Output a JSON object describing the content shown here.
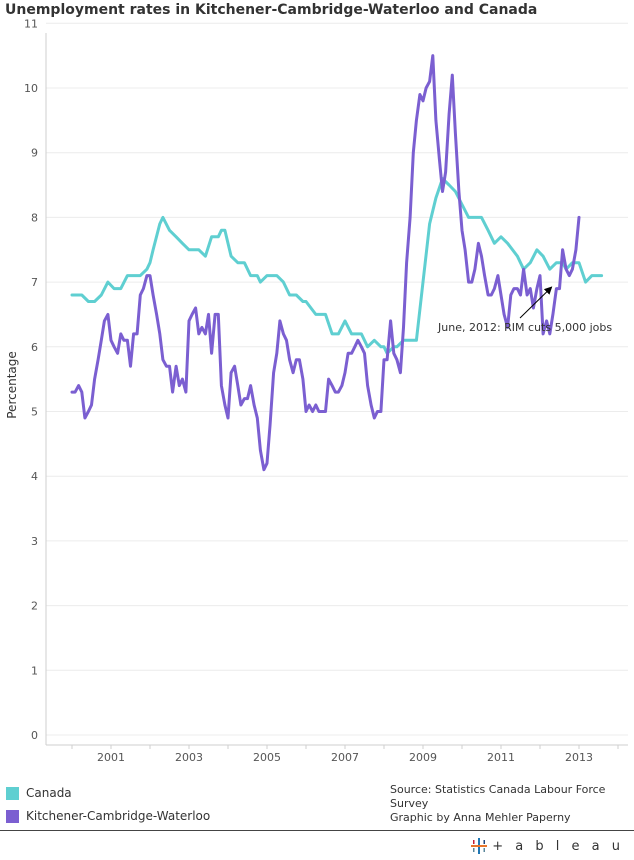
{
  "title": "Unemployment rates in Kitchener-Cambridge-Waterloo and Canada",
  "legend": [
    {
      "name": "Canada",
      "color": "#5fcfd1"
    },
    {
      "name": "Kitchener-Cambridge-Waterloo",
      "color": "#7b5fd1"
    }
  ],
  "source": {
    "line1": "Source: Statistics Canada Labour Force Survey",
    "line2": "Graphic by Anna Mehler Paperny"
  },
  "brand": {
    "name": "+ a b l e a u",
    "icon": "tableau-logo-icon"
  },
  "chart_data": {
    "type": "line",
    "title": "Unemployment rates in Kitchener-Cambridge-Waterloo and Canada",
    "ylabel": "Percentage",
    "xlabel": "",
    "ylim": [
      0,
      11
    ],
    "xlim": [
      2000.0,
      2014.0
    ],
    "y_ticks": [
      "0",
      "1",
      "2",
      "3",
      "4",
      "5",
      "6",
      "7",
      "8",
      "9",
      "10",
      "11"
    ],
    "x_ticks": [
      "2001",
      "2003",
      "2005",
      "2007",
      "2009",
      "2011",
      "2013"
    ],
    "grid": true,
    "annotation": {
      "text": "June, 2012: RIM cuts 5,000 jobs",
      "x": 2012.4,
      "y": 7.0
    },
    "series": [
      {
        "name": "Canada",
        "color": "#5fcfd1",
        "points": [
          [
            2000.0,
            6.8
          ],
          [
            2000.25,
            6.8
          ],
          [
            2000.42,
            6.7
          ],
          [
            2000.58,
            6.7
          ],
          [
            2000.75,
            6.8
          ],
          [
            2000.92,
            7.0
          ],
          [
            2001.08,
            6.9
          ],
          [
            2001.25,
            6.9
          ],
          [
            2001.42,
            7.1
          ],
          [
            2001.58,
            7.1
          ],
          [
            2001.75,
            7.1
          ],
          [
            2001.92,
            7.2
          ],
          [
            2002.0,
            7.3
          ],
          [
            2002.08,
            7.5
          ],
          [
            2002.25,
            7.9
          ],
          [
            2002.33,
            8.0
          ],
          [
            2002.5,
            7.8
          ],
          [
            2002.67,
            7.7
          ],
          [
            2002.83,
            7.6
          ],
          [
            2003.0,
            7.5
          ],
          [
            2003.25,
            7.5
          ],
          [
            2003.42,
            7.4
          ],
          [
            2003.58,
            7.7
          ],
          [
            2003.75,
            7.7
          ],
          [
            2003.83,
            7.8
          ],
          [
            2003.92,
            7.8
          ],
          [
            2004.0,
            7.6
          ],
          [
            2004.08,
            7.4
          ],
          [
            2004.25,
            7.3
          ],
          [
            2004.42,
            7.3
          ],
          [
            2004.58,
            7.1
          ],
          [
            2004.75,
            7.1
          ],
          [
            2004.83,
            7.0
          ],
          [
            2005.0,
            7.1
          ],
          [
            2005.25,
            7.1
          ],
          [
            2005.42,
            7.0
          ],
          [
            2005.58,
            6.8
          ],
          [
            2005.75,
            6.8
          ],
          [
            2005.92,
            6.7
          ],
          [
            2006.0,
            6.7
          ],
          [
            2006.25,
            6.5
          ],
          [
            2006.5,
            6.5
          ],
          [
            2006.67,
            6.2
          ],
          [
            2006.83,
            6.2
          ],
          [
            2007.0,
            6.4
          ],
          [
            2007.17,
            6.2
          ],
          [
            2007.42,
            6.2
          ],
          [
            2007.58,
            6.0
          ],
          [
            2007.75,
            6.1
          ],
          [
            2007.92,
            6.0
          ],
          [
            2008.0,
            6.0
          ],
          [
            2008.08,
            5.9
          ],
          [
            2008.25,
            6.0
          ],
          [
            2008.33,
            6.0
          ],
          [
            2008.5,
            6.1
          ],
          [
            2008.67,
            6.1
          ],
          [
            2008.83,
            6.1
          ],
          [
            2009.0,
            7.0
          ],
          [
            2009.17,
            7.9
          ],
          [
            2009.33,
            8.3
          ],
          [
            2009.5,
            8.6
          ],
          [
            2009.67,
            8.5
          ],
          [
            2009.83,
            8.4
          ],
          [
            2010.0,
            8.2
          ],
          [
            2010.17,
            8.0
          ],
          [
            2010.5,
            8.0
          ],
          [
            2010.67,
            7.8
          ],
          [
            2010.83,
            7.6
          ],
          [
            2011.0,
            7.7
          ],
          [
            2011.17,
            7.6
          ],
          [
            2011.42,
            7.4
          ],
          [
            2011.58,
            7.2
          ],
          [
            2011.75,
            7.3
          ],
          [
            2011.92,
            7.5
          ],
          [
            2012.08,
            7.4
          ],
          [
            2012.25,
            7.2
          ],
          [
            2012.42,
            7.3
          ],
          [
            2012.58,
            7.3
          ],
          [
            2012.67,
            7.2
          ],
          [
            2012.83,
            7.3
          ],
          [
            2013.0,
            7.3
          ],
          [
            2013.17,
            7.0
          ],
          [
            2013.33,
            7.1
          ],
          [
            2013.58,
            7.1
          ]
        ]
      },
      {
        "name": "Kitchener-Cambridge-Waterloo",
        "color": "#7b5fd1",
        "points": [
          [
            2000.0,
            5.3
          ],
          [
            2000.08,
            5.3
          ],
          [
            2000.17,
            5.4
          ],
          [
            2000.25,
            5.3
          ],
          [
            2000.33,
            4.9
          ],
          [
            2000.42,
            5.0
          ],
          [
            2000.5,
            5.1
          ],
          [
            2000.58,
            5.5
          ],
          [
            2000.67,
            5.8
          ],
          [
            2000.75,
            6.1
          ],
          [
            2000.83,
            6.4
          ],
          [
            2000.92,
            6.5
          ],
          [
            2001.0,
            6.1
          ],
          [
            2001.08,
            6.0
          ],
          [
            2001.17,
            5.9
          ],
          [
            2001.25,
            6.2
          ],
          [
            2001.33,
            6.1
          ],
          [
            2001.42,
            6.1
          ],
          [
            2001.5,
            5.7
          ],
          [
            2001.58,
            6.2
          ],
          [
            2001.67,
            6.2
          ],
          [
            2001.75,
            6.8
          ],
          [
            2001.83,
            6.9
          ],
          [
            2001.92,
            7.1
          ],
          [
            2002.0,
            7.1
          ],
          [
            2002.08,
            6.8
          ],
          [
            2002.17,
            6.5
          ],
          [
            2002.25,
            6.2
          ],
          [
            2002.33,
            5.8
          ],
          [
            2002.42,
            5.7
          ],
          [
            2002.5,
            5.7
          ],
          [
            2002.58,
            5.3
          ],
          [
            2002.67,
            5.7
          ],
          [
            2002.75,
            5.4
          ],
          [
            2002.83,
            5.5
          ],
          [
            2002.92,
            5.3
          ],
          [
            2003.0,
            6.4
          ],
          [
            2003.08,
            6.5
          ],
          [
            2003.17,
            6.6
          ],
          [
            2003.25,
            6.2
          ],
          [
            2003.33,
            6.3
          ],
          [
            2003.42,
            6.2
          ],
          [
            2003.5,
            6.5
          ],
          [
            2003.58,
            5.9
          ],
          [
            2003.67,
            6.5
          ],
          [
            2003.75,
            6.5
          ],
          [
            2003.83,
            5.4
          ],
          [
            2003.92,
            5.1
          ],
          [
            2004.0,
            4.9
          ],
          [
            2004.08,
            5.6
          ],
          [
            2004.17,
            5.7
          ],
          [
            2004.25,
            5.4
          ],
          [
            2004.33,
            5.1
          ],
          [
            2004.42,
            5.2
          ],
          [
            2004.5,
            5.2
          ],
          [
            2004.58,
            5.4
          ],
          [
            2004.67,
            5.1
          ],
          [
            2004.75,
            4.9
          ],
          [
            2004.83,
            4.4
          ],
          [
            2004.92,
            4.1
          ],
          [
            2005.0,
            4.2
          ],
          [
            2005.08,
            4.8
          ],
          [
            2005.17,
            5.6
          ],
          [
            2005.25,
            5.9
          ],
          [
            2005.33,
            6.4
          ],
          [
            2005.42,
            6.2
          ],
          [
            2005.5,
            6.1
          ],
          [
            2005.58,
            5.8
          ],
          [
            2005.67,
            5.6
          ],
          [
            2005.75,
            5.8
          ],
          [
            2005.83,
            5.8
          ],
          [
            2005.92,
            5.5
          ],
          [
            2006.0,
            5.0
          ],
          [
            2006.08,
            5.1
          ],
          [
            2006.17,
            5.0
          ],
          [
            2006.25,
            5.1
          ],
          [
            2006.33,
            5.0
          ],
          [
            2006.42,
            5.0
          ],
          [
            2006.5,
            5.0
          ],
          [
            2006.58,
            5.5
          ],
          [
            2006.67,
            5.4
          ],
          [
            2006.75,
            5.3
          ],
          [
            2006.83,
            5.3
          ],
          [
            2006.92,
            5.4
          ],
          [
            2007.0,
            5.6
          ],
          [
            2007.08,
            5.9
          ],
          [
            2007.17,
            5.9
          ],
          [
            2007.25,
            6.0
          ],
          [
            2007.33,
            6.1
          ],
          [
            2007.42,
            6.0
          ],
          [
            2007.5,
            5.9
          ],
          [
            2007.58,
            5.4
          ],
          [
            2007.67,
            5.1
          ],
          [
            2007.75,
            4.9
          ],
          [
            2007.83,
            5.0
          ],
          [
            2007.92,
            5.0
          ],
          [
            2008.0,
            5.8
          ],
          [
            2008.08,
            5.8
          ],
          [
            2008.17,
            6.4
          ],
          [
            2008.25,
            5.9
          ],
          [
            2008.33,
            5.8
          ],
          [
            2008.42,
            5.6
          ],
          [
            2008.5,
            6.3
          ],
          [
            2008.58,
            7.3
          ],
          [
            2008.67,
            8.0
          ],
          [
            2008.75,
            9.0
          ],
          [
            2008.83,
            9.5
          ],
          [
            2008.92,
            9.9
          ],
          [
            2009.0,
            9.8
          ],
          [
            2009.08,
            10.0
          ],
          [
            2009.17,
            10.1
          ],
          [
            2009.25,
            10.5
          ],
          [
            2009.33,
            9.5
          ],
          [
            2009.42,
            8.9
          ],
          [
            2009.5,
            8.4
          ],
          [
            2009.58,
            8.7
          ],
          [
            2009.67,
            9.6
          ],
          [
            2009.75,
            10.2
          ],
          [
            2009.83,
            9.3
          ],
          [
            2009.92,
            8.4
          ],
          [
            2010.0,
            7.8
          ],
          [
            2010.08,
            7.5
          ],
          [
            2010.17,
            7.0
          ],
          [
            2010.25,
            7.0
          ],
          [
            2010.33,
            7.2
          ],
          [
            2010.42,
            7.6
          ],
          [
            2010.5,
            7.4
          ],
          [
            2010.58,
            7.1
          ],
          [
            2010.67,
            6.8
          ],
          [
            2010.75,
            6.8
          ],
          [
            2010.83,
            6.9
          ],
          [
            2010.92,
            7.1
          ],
          [
            2011.0,
            6.8
          ],
          [
            2011.08,
            6.5
          ],
          [
            2011.17,
            6.3
          ],
          [
            2011.25,
            6.8
          ],
          [
            2011.33,
            6.9
          ],
          [
            2011.42,
            6.9
          ],
          [
            2011.5,
            6.8
          ],
          [
            2011.58,
            7.2
          ],
          [
            2011.67,
            6.8
          ],
          [
            2011.75,
            6.9
          ],
          [
            2011.83,
            6.6
          ],
          [
            2011.92,
            6.9
          ],
          [
            2012.0,
            7.1
          ],
          [
            2012.08,
            6.2
          ],
          [
            2012.17,
            6.4
          ],
          [
            2012.25,
            6.2
          ],
          [
            2012.33,
            6.5
          ],
          [
            2012.42,
            6.9
          ],
          [
            2012.5,
            6.9
          ],
          [
            2012.58,
            7.5
          ],
          [
            2012.67,
            7.2
          ],
          [
            2012.75,
            7.1
          ],
          [
            2012.83,
            7.2
          ],
          [
            2012.92,
            7.5
          ],
          [
            2013.0,
            8.0
          ]
        ]
      }
    ]
  }
}
